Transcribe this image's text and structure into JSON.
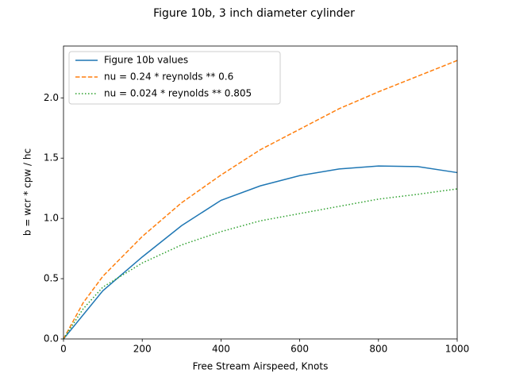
{
  "chart_data": {
    "type": "line",
    "title": "Figure 10b, 3 inch diameter cylinder",
    "xlabel": "Free Stream Airspeed, Knots",
    "ylabel": "b = wcr * cpw / hc",
    "xlim": [
      0,
      1000
    ],
    "ylim": [
      0,
      2.43
    ],
    "xticks": [
      0,
      200,
      400,
      600,
      800,
      1000
    ],
    "yticks": [
      {
        "value": 0,
        "label": "0.0"
      },
      0.5,
      {
        "value": 1,
        "label": "1.0"
      },
      1.5,
      {
        "value": 2,
        "label": "2.0"
      }
    ],
    "legend": "upper left",
    "series": [
      {
        "name": "Figure 10b values",
        "color": "#1f77b4",
        "style": "solid",
        "x": [
          0,
          100,
          200,
          300,
          400,
          500,
          600,
          700,
          800,
          900,
          1000
        ],
        "values": [
          0,
          0.4,
          0.68,
          0.94,
          1.15,
          1.27,
          1.355,
          1.41,
          1.435,
          1.43,
          1.38
        ]
      },
      {
        "name": "nu = 0.24 * reynolds ** 0.6",
        "color": "#ff7f0e",
        "style": "dashed",
        "x": [
          0,
          50,
          100,
          200,
          300,
          400,
          500,
          600,
          700,
          800,
          900,
          1000
        ],
        "values": [
          0,
          0.3,
          0.52,
          0.85,
          1.13,
          1.36,
          1.57,
          1.74,
          1.91,
          2.05,
          2.18,
          2.31
        ]
      },
      {
        "name": "nu = 0.024 * reynolds ** 0.805",
        "color": "#2ca02c",
        "style": "dotted",
        "x": [
          0,
          50,
          100,
          200,
          300,
          400,
          500,
          600,
          700,
          800,
          900,
          1000
        ],
        "values": [
          0,
          0.25,
          0.43,
          0.63,
          0.78,
          0.89,
          0.98,
          1.04,
          1.1,
          1.16,
          1.2,
          1.245
        ]
      }
    ]
  }
}
